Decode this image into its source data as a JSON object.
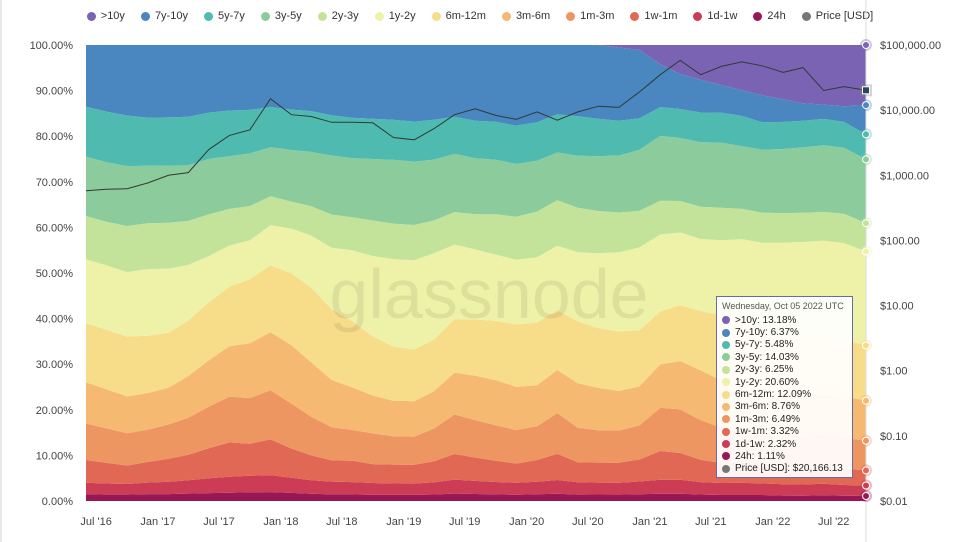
{
  "legend": [
    {
      "label": ">10y",
      "color": "#7b63b4"
    },
    {
      "label": "7y-10y",
      "color": "#4a86c0"
    },
    {
      "label": "5y-7y",
      "color": "#4fbbb0"
    },
    {
      "label": "3y-5y",
      "color": "#8ccc9c"
    },
    {
      "label": "2y-3y",
      "color": "#c4e39a"
    },
    {
      "label": "1y-2y",
      "color": "#eef2a8"
    },
    {
      "label": "6m-12m",
      "color": "#f7dc8a"
    },
    {
      "label": "3m-6m",
      "color": "#f5b971"
    },
    {
      "label": "1m-3m",
      "color": "#ee9662"
    },
    {
      "label": "1w-1m",
      "color": "#e06854"
    },
    {
      "label": "1d-1w",
      "color": "#cc3d55"
    },
    {
      "label": "24h",
      "color": "#9a1756"
    },
    {
      "label": "Price [USD]",
      "color": "#777777"
    }
  ],
  "watermark": "glassnode",
  "tooltip": {
    "date": "Wednesday, Oct 05 2022 UTC",
    "rows": [
      {
        "text": ">10y: 13.18%",
        "color": "#7b63b4"
      },
      {
        "text": "7y-10y: 6.37%",
        "color": "#4a86c0"
      },
      {
        "text": "5y-7y: 5.48%",
        "color": "#4fbbb0"
      },
      {
        "text": "3y-5y: 14.03%",
        "color": "#8ccc9c"
      },
      {
        "text": "2y-3y: 6.25%",
        "color": "#c4e39a"
      },
      {
        "text": "1y-2y: 20.60%",
        "color": "#eef2a8"
      },
      {
        "text": "6m-12m: 12.09%",
        "color": "#f7dc8a"
      },
      {
        "text": "3m-6m: 8.76%",
        "color": "#f5b971"
      },
      {
        "text": "1m-3m: 6.49%",
        "color": "#ee9662"
      },
      {
        "text": "1w-1m: 3.32%",
        "color": "#e06854"
      },
      {
        "text": "1d-1w: 2.32%",
        "color": "#cc3d55"
      },
      {
        "text": "24h: 1.11%",
        "color": "#9a1756"
      },
      {
        "text": "Price [USD]: $20,166.13",
        "color": "#777777"
      }
    ]
  },
  "chart_data": {
    "type": "area",
    "stacked": true,
    "x_ticks": [
      "Jul '16",
      "Jan '17",
      "Jul '17",
      "Jan '18",
      "Jul '18",
      "Jan '19",
      "Jul '19",
      "Jan '20",
      "Jul '20",
      "Jan '21",
      "Jul '21",
      "Jan '22",
      "Jul '22"
    ],
    "y_left_ticks": [
      "0.00%",
      "10.00%",
      "20.00%",
      "30.00%",
      "40.00%",
      "50.00%",
      "60.00%",
      "70.00%",
      "80.00%",
      "90.00%",
      "100.00%"
    ],
    "y_right_ticks": [
      "$0.01",
      "$0.10",
      "$1.00",
      "$10.00",
      "$100.00",
      "$1,000.00",
      "$10,000.00",
      "$100,000.00"
    ],
    "y_right_scale": "log",
    "ylim_left": [
      0,
      100
    ],
    "ylim_right": [
      0.01,
      100000
    ],
    "x": [
      "2016-06-01",
      "2016-08-01",
      "2016-10-01",
      "2016-12-01",
      "2017-02-01",
      "2017-04-01",
      "2017-06-01",
      "2017-08-01",
      "2017-10-01",
      "2017-12-01",
      "2018-02-01",
      "2018-04-01",
      "2018-06-01",
      "2018-08-01",
      "2018-10-01",
      "2018-12-01",
      "2019-02-01",
      "2019-04-01",
      "2019-06-01",
      "2019-08-01",
      "2019-10-01",
      "2019-12-01",
      "2020-02-01",
      "2020-04-01",
      "2020-06-01",
      "2020-08-01",
      "2020-10-01",
      "2020-12-01",
      "2021-02-01",
      "2021-04-01",
      "2021-06-01",
      "2021-08-01",
      "2021-10-01",
      "2021-12-01",
      "2022-02-01",
      "2022-04-01",
      "2022-06-01",
      "2022-08-01",
      "2022-10-05"
    ],
    "series": [
      {
        "name": "24h",
        "color": "#9a1756",
        "values": [
          1.5,
          1.4,
          1.4,
          1.5,
          1.5,
          1.6,
          1.7,
          1.8,
          1.9,
          2.0,
          1.8,
          1.6,
          1.4,
          1.4,
          1.3,
          1.3,
          1.3,
          1.4,
          1.6,
          1.5,
          1.4,
          1.3,
          1.4,
          1.5,
          1.3,
          1.3,
          1.3,
          1.4,
          1.5,
          1.5,
          1.3,
          1.2,
          1.2,
          1.2,
          1.1,
          1.1,
          1.2,
          1.1,
          1.1
        ]
      },
      {
        "name": "1d-1w",
        "color": "#cc3d55",
        "values": [
          2.5,
          2.4,
          2.3,
          2.5,
          2.7,
          2.9,
          3.2,
          3.5,
          3.6,
          3.8,
          3.4,
          3.0,
          2.7,
          2.6,
          2.5,
          2.4,
          2.4,
          2.6,
          3.0,
          2.8,
          2.6,
          2.5,
          2.6,
          2.9,
          2.5,
          2.4,
          2.4,
          2.6,
          2.9,
          2.9,
          2.5,
          2.4,
          2.4,
          2.3,
          2.3,
          2.3,
          2.4,
          2.3,
          2.3
        ]
      },
      {
        "name": "1w-1m",
        "color": "#e06854",
        "values": [
          5.0,
          4.5,
          4.0,
          4.5,
          5.0,
          5.5,
          6.5,
          7.5,
          7.0,
          8.0,
          6.5,
          5.5,
          4.5,
          4.5,
          4.0,
          4.0,
          4.0,
          4.5,
          5.5,
          5.0,
          4.5,
          4.0,
          4.5,
          5.5,
          4.0,
          4.0,
          4.0,
          4.5,
          6.0,
          5.5,
          4.5,
          4.0,
          4.0,
          3.5,
          3.5,
          3.5,
          4.0,
          3.5,
          3.3
        ]
      },
      {
        "name": "1m-3m",
        "color": "#ee9662",
        "values": [
          8.0,
          7.5,
          7.0,
          7.0,
          7.5,
          8.0,
          9.0,
          10.0,
          10.0,
          11.0,
          10.0,
          8.5,
          7.0,
          6.5,
          6.5,
          6.0,
          6.0,
          7.0,
          8.5,
          8.0,
          7.5,
          7.0,
          7.0,
          8.5,
          7.0,
          6.5,
          6.5,
          7.0,
          9.0,
          9.0,
          8.0,
          7.0,
          6.5,
          6.0,
          6.0,
          6.0,
          6.5,
          6.5,
          6.5
        ]
      },
      {
        "name": "3m-6m",
        "color": "#f5b971",
        "values": [
          9.0,
          8.5,
          8.0,
          8.0,
          8.0,
          9.0,
          10.0,
          11.0,
          12.0,
          13.0,
          13.0,
          12.0,
          10.0,
          9.0,
          8.0,
          7.5,
          7.5,
          8.0,
          9.0,
          9.5,
          9.5,
          9.0,
          8.5,
          9.0,
          9.0,
          8.5,
          8.0,
          8.0,
          9.0,
          10.0,
          10.0,
          9.5,
          9.0,
          8.5,
          8.5,
          8.5,
          8.5,
          8.8,
          8.8
        ]
      },
      {
        "name": "6m-12m",
        "color": "#f7dc8a",
        "values": [
          13.0,
          13.0,
          13.0,
          12.5,
          12.0,
          12.0,
          12.5,
          13.0,
          14.0,
          15.0,
          16.0,
          16.5,
          15.0,
          14.0,
          12.5,
          11.5,
          11.0,
          11.0,
          11.5,
          12.0,
          12.5,
          13.0,
          13.0,
          12.5,
          12.5,
          12.0,
          12.0,
          11.5,
          11.0,
          11.5,
          12.0,
          13.0,
          13.0,
          13.0,
          12.5,
          12.5,
          12.0,
          12.0,
          12.1
        ]
      },
      {
        "name": "1y-2y",
        "color": "#eef2a8",
        "values": [
          14.0,
          14.0,
          14.0,
          14.5,
          14.0,
          12.0,
          10.0,
          9.0,
          8.5,
          9.0,
          10.0,
          11.5,
          13.0,
          15.0,
          17.0,
          18.5,
          19.0,
          18.5,
          16.0,
          15.0,
          14.0,
          13.5,
          13.5,
          13.5,
          14.0,
          15.0,
          16.0,
          17.0,
          16.0,
          15.0,
          14.5,
          15.0,
          16.0,
          17.0,
          18.5,
          19.5,
          20.0,
          20.5,
          20.6
        ]
      },
      {
        "name": "2y-3y",
        "color": "#c4e39a",
        "values": [
          9.5,
          9.5,
          10.0,
          10.0,
          10.0,
          9.5,
          9.0,
          8.0,
          7.5,
          6.5,
          6.0,
          6.5,
          7.0,
          7.0,
          7.5,
          7.5,
          7.5,
          7.0,
          7.0,
          7.5,
          8.5,
          9.0,
          9.5,
          9.5,
          9.0,
          8.5,
          8.0,
          7.5,
          7.0,
          6.5,
          6.5,
          6.5,
          6.0,
          6.0,
          6.0,
          6.0,
          6.0,
          6.2,
          6.2
        ]
      },
      {
        "name": "3y-5y",
        "color": "#8ccc9c",
        "values": [
          13.0,
          13.0,
          13.0,
          12.5,
          12.5,
          12.0,
          12.0,
          11.5,
          11.5,
          11.0,
          11.5,
          12.0,
          12.5,
          12.5,
          13.0,
          13.5,
          13.5,
          13.0,
          12.5,
          12.0,
          11.5,
          11.0,
          10.5,
          10.0,
          10.5,
          11.0,
          11.5,
          12.5,
          13.5,
          13.0,
          13.0,
          13.0,
          12.5,
          12.5,
          13.0,
          13.5,
          14.0,
          14.0,
          14.0
        ]
      },
      {
        "name": "5y-7y",
        "color": "#4fbbb0",
        "values": [
          11.0,
          11.0,
          11.0,
          10.5,
          10.5,
          10.5,
          10.0,
          10.0,
          9.5,
          9.0,
          9.0,
          9.0,
          8.5,
          8.5,
          8.5,
          8.5,
          8.5,
          8.5,
          8.0,
          8.0,
          8.0,
          8.0,
          8.0,
          8.0,
          8.0,
          7.5,
          7.0,
          6.5,
          6.0,
          6.0,
          6.0,
          6.0,
          6.0,
          5.5,
          5.5,
          5.5,
          5.5,
          5.5,
          5.5
        ]
      },
      {
        "name": "7y-10y",
        "color": "#4a86c0",
        "values": [
          13.5,
          14.5,
          15.3,
          15.8,
          15.8,
          15.5,
          14.6,
          14.3,
          14.2,
          13.9,
          14.4,
          14.6,
          14.9,
          15.4,
          15.6,
          15.8,
          16.3,
          16.0,
          15.4,
          16.2,
          16.2,
          16.8,
          16.0,
          14.5,
          14.4,
          14.8,
          14.8,
          14.0,
          8.9,
          7.2,
          6.6,
          5.5,
          5.1,
          5.4,
          4.6,
          3.6,
          3.0,
          3.3,
          6.4
        ]
      },
      {
        "name": ">10y",
        "color": "#7b63b4",
        "values": [
          0,
          0,
          0,
          0,
          0,
          0,
          0,
          0,
          0,
          0,
          0,
          0,
          0,
          0,
          0,
          0,
          0,
          0,
          0,
          0,
          0,
          0,
          0,
          0,
          0,
          0,
          0.5,
          1.0,
          4.0,
          6.0,
          7.0,
          8.0,
          9.0,
          10.0,
          11.0,
          12.0,
          12.5,
          13.0,
          13.18
        ]
      }
    ],
    "price_series": {
      "name": "Price [USD]",
      "values": [
        580,
        610,
        620,
        760,
        1000,
        1100,
        2500,
        4100,
        5000,
        15000,
        8500,
        8000,
        6500,
        6500,
        6400,
        3800,
        3500,
        5200,
        8500,
        10500,
        8300,
        7200,
        9400,
        7000,
        9400,
        11500,
        11000,
        19000,
        35000,
        58000,
        35000,
        47000,
        55000,
        48000,
        38000,
        45000,
        20000,
        23000,
        20166
      ]
    },
    "title": "",
    "xlabel": "",
    "ylabel": ""
  }
}
